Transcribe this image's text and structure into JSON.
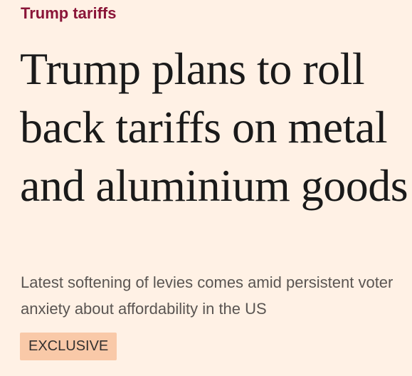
{
  "header": {
    "topic": "Trump tariffs"
  },
  "article": {
    "headline": "Trump plans to roll back tariffs on metal and aluminium goods",
    "standfirst": "Latest softening of levies comes amid persistent voter anxiety about affordability in the US",
    "tag": "EXCLUSIVE"
  }
}
